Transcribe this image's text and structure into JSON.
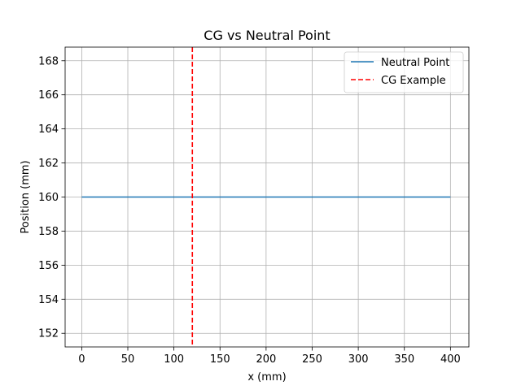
{
  "chart_data": {
    "type": "line",
    "title": "CG vs Neutral Point",
    "xlabel": "x (mm)",
    "ylabel": "Position (mm)",
    "xlim": [
      -18,
      420
    ],
    "ylim": [
      151.2,
      168.8
    ],
    "xticks": [
      0,
      50,
      100,
      150,
      200,
      250,
      300,
      350,
      400
    ],
    "yticks": [
      152,
      154,
      156,
      158,
      160,
      162,
      164,
      166,
      168
    ],
    "grid": true,
    "legend_position": "upper right",
    "series": [
      {
        "name": "Neutral Point",
        "kind": "line",
        "style": "solid",
        "color": "#1f77b4",
        "x": [
          0,
          400
        ],
        "y": [
          160,
          160
        ]
      },
      {
        "name": "CG Example",
        "kind": "vline",
        "style": "dashed",
        "color": "#ff0000",
        "x": 120
      }
    ]
  }
}
